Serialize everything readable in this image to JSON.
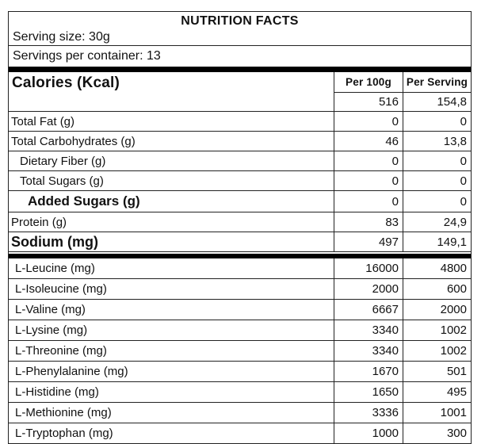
{
  "colors": {
    "background": "#ffffff",
    "border": "#222222",
    "divider_bar": "#000000",
    "text": "#111111"
  },
  "header": {
    "title": "NUTRITION FACTS",
    "serving_size": "Serving size: 30g",
    "servings_per_container": "Servings per container: 13"
  },
  "columns": {
    "label_header": "Calories (Kcal)",
    "per_100g": "Per 100g",
    "per_serving": "Per Serving"
  },
  "calories": {
    "per_100g": "516",
    "per_serving": "154,8"
  },
  "nutrients": [
    {
      "label": "Total Fat (g)",
      "per_100g": "0",
      "per_serving": "0"
    },
    {
      "label": "Total Carbohydrates (g)",
      "per_100g": "46",
      "per_serving": "13,8"
    },
    {
      "label": "Dietary Fiber (g)",
      "per_100g": "0",
      "per_serving": "0"
    },
    {
      "label": "Total Sugars (g)",
      "per_100g": "0",
      "per_serving": "0"
    },
    {
      "label": "Added Sugars (g)",
      "per_100g": "0",
      "per_serving": "0"
    },
    {
      "label": "Protein (g)",
      "per_100g": "83",
      "per_serving": "24,9"
    },
    {
      "label": "Sodium (mg)",
      "per_100g": "497",
      "per_serving": "149,1"
    }
  ],
  "amino_acids": [
    {
      "label": "L-Leucine (mg)",
      "per_100g": "16000",
      "per_serving": "4800"
    },
    {
      "label": "L-Isoleucine (mg)",
      "per_100g": "2000",
      "per_serving": "600"
    },
    {
      "label": "L-Valine (mg)",
      "per_100g": "6667",
      "per_serving": "2000"
    },
    {
      "label": "L-Lysine (mg)",
      "per_100g": "3340",
      "per_serving": "1002"
    },
    {
      "label": "L-Threonine (mg)",
      "per_100g": "3340",
      "per_serving": "1002"
    },
    {
      "label": "L-Phenylalanine (mg)",
      "per_100g": "1670",
      "per_serving": "501"
    },
    {
      "label": "L-Histidine (mg)",
      "per_100g": "1650",
      "per_serving": "495"
    },
    {
      "label": "L-Methionine (mg)",
      "per_100g": "3336",
      "per_serving": "1001"
    },
    {
      "label": "L-Tryptophan (mg)",
      "per_100g": "1000",
      "per_serving": "300"
    }
  ]
}
